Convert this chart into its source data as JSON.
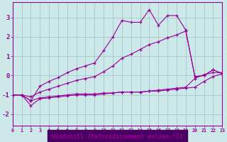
{
  "background_color": "#cce8e8",
  "plot_bg_color": "#cce8e8",
  "bottom_bar_color": "#4a0060",
  "grid_color": "#aacccc",
  "line_color": "#990099",
  "xlabel": "Windchill (Refroidissement éolien,°C)",
  "xlim": [
    0,
    23
  ],
  "ylim": [
    -2.6,
    3.8
  ],
  "xticks": [
    0,
    1,
    2,
    3,
    4,
    5,
    6,
    7,
    8,
    9,
    10,
    11,
    12,
    13,
    14,
    15,
    16,
    17,
    18,
    19,
    20,
    21,
    22,
    23
  ],
  "yticks": [
    -2,
    -1,
    0,
    1,
    2,
    3
  ],
  "lines": [
    {
      "x": [
        0,
        1,
        2,
        3,
        4,
        5,
        6,
        7,
        8,
        9,
        10,
        11,
        12,
        13,
        14,
        15,
        16,
        17,
        18,
        19,
        20,
        21,
        22,
        23
      ],
      "y": [
        -1.0,
        -1.0,
        -1.3,
        -1.15,
        -1.1,
        -1.05,
        -1.0,
        -0.95,
        -0.95,
        -0.95,
        -0.9,
        -0.9,
        -0.85,
        -0.85,
        -0.85,
        -0.8,
        -0.8,
        -0.75,
        -0.7,
        -0.65,
        -0.6,
        -0.3,
        -0.05,
        0.1
      ]
    },
    {
      "x": [
        0,
        1,
        2,
        3,
        4,
        5,
        6,
        7,
        8,
        9,
        10,
        11,
        12,
        13,
        14,
        15,
        16,
        17,
        18,
        19,
        20,
        21,
        22,
        23
      ],
      "y": [
        -1.0,
        -1.0,
        -1.55,
        -1.2,
        -1.15,
        -1.1,
        -1.05,
        -1.0,
        -1.0,
        -1.0,
        -0.95,
        -0.9,
        -0.85,
        -0.85,
        -0.85,
        -0.8,
        -0.75,
        -0.7,
        -0.65,
        -0.6,
        -0.15,
        0.05,
        0.15,
        0.15
      ]
    },
    {
      "x": [
        0,
        1,
        2,
        3,
        4,
        5,
        6,
        7,
        8,
        9,
        10,
        11,
        12,
        13,
        14,
        15,
        16,
        17,
        18,
        19,
        20,
        21,
        22,
        23
      ],
      "y": [
        -1.0,
        -1.0,
        -1.3,
        -0.55,
        -0.3,
        -0.1,
        0.15,
        0.35,
        0.5,
        0.65,
        1.3,
        2.0,
        2.85,
        2.75,
        2.75,
        3.4,
        2.6,
        3.1,
        3.1,
        2.35,
        -0.05,
        0.0,
        0.3,
        0.1
      ]
    },
    {
      "x": [
        0,
        1,
        2,
        3,
        4,
        5,
        6,
        7,
        8,
        9,
        10,
        11,
        12,
        13,
        14,
        15,
        16,
        17,
        18,
        19,
        20,
        21,
        22,
        23
      ],
      "y": [
        -1.0,
        -1.0,
        -1.1,
        -0.85,
        -0.7,
        -0.55,
        -0.4,
        -0.25,
        -0.15,
        -0.05,
        0.2,
        0.5,
        0.9,
        1.1,
        1.35,
        1.6,
        1.75,
        1.95,
        2.1,
        2.3,
        -0.05,
        0.0,
        0.3,
        0.1
      ]
    }
  ]
}
